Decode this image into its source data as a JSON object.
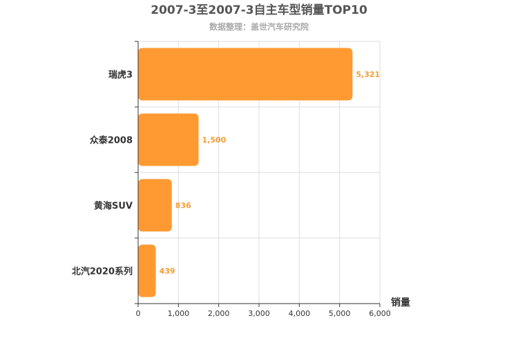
{
  "chart_data": {
    "type": "bar",
    "orientation": "horizontal",
    "title": "2007-3至2007-3自主车型销量TOP10",
    "subtitle": "数据整理：盖世汽车研究院",
    "categories": [
      "瑞虎3",
      "众泰2008",
      "黄海SUV",
      "北汽2020系列"
    ],
    "values": [
      5321,
      1500,
      836,
      439
    ],
    "value_labels": [
      "5,321",
      "1,500",
      "836",
      "439"
    ],
    "xlabel": "销量",
    "ylabel": "",
    "xlim": [
      0,
      6000
    ],
    "x_ticks": [
      0,
      1000,
      2000,
      3000,
      4000,
      5000,
      6000
    ],
    "x_tick_labels": [
      "0",
      "1,000",
      "2,000",
      "3,000",
      "4,000",
      "5,000",
      "6,000"
    ],
    "grid": true,
    "legend": "none",
    "colors": {
      "bar": "#ff9a33",
      "value_label": "#f39c33",
      "grid": "#dddddd",
      "axis": "#333333"
    }
  }
}
